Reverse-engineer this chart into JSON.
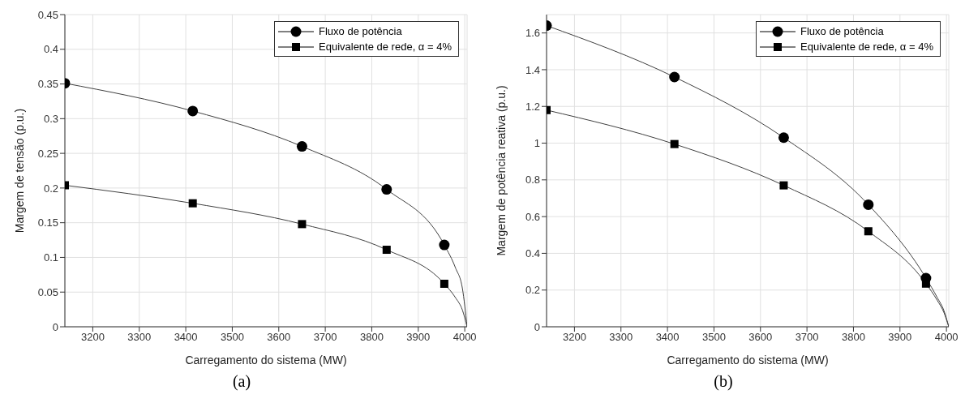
{
  "chart_data": [
    {
      "type": "line",
      "xlabel": "Carregamento do sistema (MW)",
      "ylabel": "Margem de tensão (p.u.)",
      "annotations": [
        "(a)"
      ],
      "xlim": [
        3140,
        4005
      ],
      "xticks": [
        3200,
        3300,
        3400,
        3500,
        3600,
        3700,
        3800,
        3900,
        4000
      ],
      "ylim": [
        0,
        0.45
      ],
      "yticks": [
        0,
        0.05,
        0.1,
        0.15,
        0.2,
        0.25,
        0.3,
        0.35,
        0.4,
        0.45
      ],
      "grid": true,
      "legend": "top right",
      "line_style": "solid",
      "series": [
        {
          "type": "scatter",
          "name": "Fluxo de potência",
          "color": "#000000",
          "marker": "circle",
          "x": [
            3140,
            3415,
            3650,
            3832,
            3956
          ],
          "values": [
            0.351,
            0.311,
            0.26,
            0.198,
            0.118
          ]
        },
        {
          "type": "scatter",
          "name": "Equivalente de rede, α = 4%",
          "color": "#000000",
          "marker": "square",
          "x": [
            3140,
            3415,
            3650,
            3832,
            3956
          ],
          "values": [
            0.204,
            0.178,
            0.148,
            0.111,
            0.062
          ]
        },
        {
          "color": "#404040",
          "marker": "none",
          "x": [
            3140,
            3415,
            3650,
            3832,
            3956,
            3980,
            3995,
            4005
          ],
          "values": [
            0.351,
            0.311,
            0.26,
            0.198,
            0.118,
            0.085,
            0.055,
            0
          ]
        },
        {
          "color": "#404040",
          "marker": "none",
          "x": [
            3140,
            3415,
            3650,
            3832,
            3956,
            3980,
            3995,
            4005
          ],
          "values": [
            0.204,
            0.178,
            0.148,
            0.111,
            0.062,
            0.042,
            0.024,
            0
          ]
        }
      ]
    },
    {
      "type": "line",
      "xlabel": "Carregamento do sistema (MW)",
      "ylabel": "Margem de potência reativa (p.u.)",
      "annotations": [
        "(b)"
      ],
      "xlim": [
        3140,
        4005
      ],
      "xticks": [
        3200,
        3300,
        3400,
        3500,
        3600,
        3700,
        3800,
        3900,
        4000
      ],
      "ylim": [
        0,
        1.7
      ],
      "yticks": [
        0,
        0.2,
        0.4,
        0.6,
        0.8,
        1,
        1.2,
        1.4,
        1.6
      ],
      "grid": true,
      "legend": "top right",
      "line_style": "solid",
      "series": [
        {
          "type": "scatter",
          "name": "Fluxo de potência",
          "color": "#000000",
          "marker": "circle",
          "x": [
            3140,
            3415,
            3650,
            3832,
            3956
          ],
          "values": [
            1.64,
            1.36,
            1.03,
            0.665,
            0.265
          ]
        },
        {
          "type": "scatter",
          "name": "Equivalente de rede, α = 4%",
          "color": "#000000",
          "marker": "square",
          "x": [
            3140,
            3415,
            3650,
            3832,
            3956
          ],
          "values": [
            1.18,
            0.995,
            0.77,
            0.52,
            0.235
          ]
        },
        {
          "color": "#404040",
          "marker": "none",
          "x": [
            3140,
            3415,
            3650,
            3832,
            3956,
            3980,
            3995,
            4005
          ],
          "values": [
            1.64,
            1.36,
            1.03,
            0.665,
            0.265,
            0.16,
            0.085,
            0
          ]
        },
        {
          "color": "#404040",
          "marker": "none",
          "x": [
            3140,
            3415,
            3650,
            3832,
            3956,
            3980,
            3995,
            4005
          ],
          "values": [
            1.18,
            0.995,
            0.77,
            0.52,
            0.235,
            0.145,
            0.075,
            0
          ]
        }
      ]
    }
  ]
}
